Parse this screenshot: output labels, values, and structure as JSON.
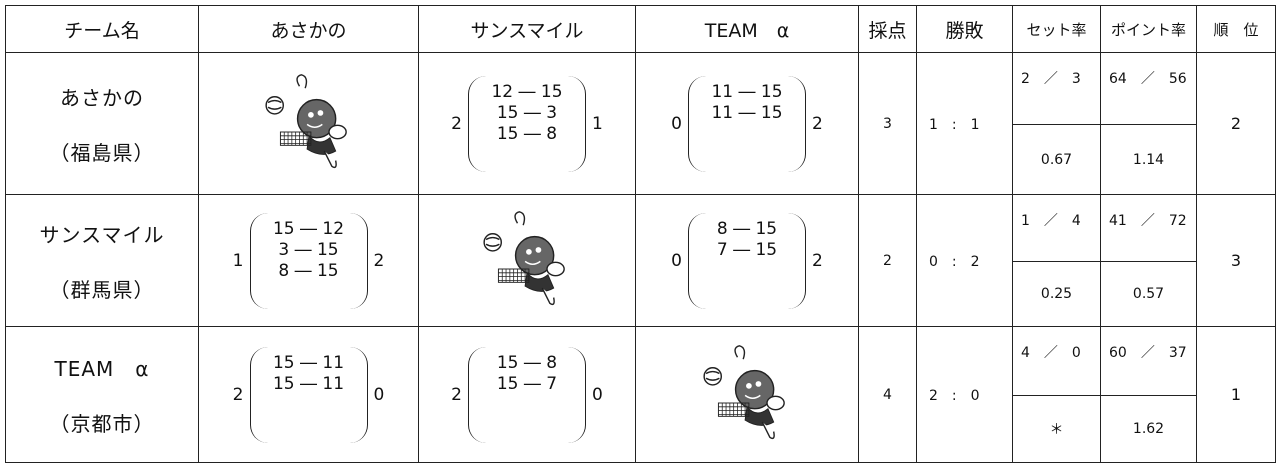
{
  "table": {
    "header": [
      "チーム名",
      "あさかの",
      "サンスマイル",
      "TEAM　α",
      "採点",
      "勝敗",
      "セット率",
      "ポイント率",
      "順　位"
    ],
    "rows": [
      {
        "team": "あさかの",
        "region": "（福島県）",
        "matches": [
          {
            "left": "2",
            "sets": [
              "12 ― 15",
              "15 ― 3",
              "15 ― 8"
            ],
            "right": "1"
          },
          {
            "left": "0",
            "sets": [
              "11 ― 15",
              "11 ― 15"
            ],
            "right": "2"
          }
        ],
        "score": "3",
        "record": "1　:　1",
        "set_ratio": "2　／　3",
        "set_rate": "0.67",
        "point_ratio": "64　／　56",
        "point_rate": "1.14",
        "rank": "2"
      },
      {
        "team": "サンスマイル",
        "region": "（群馬県）",
        "matches": [
          {
            "left": "1",
            "sets": [
              "15 ― 12",
              "3 ― 15",
              "8 ― 15"
            ],
            "right": "2"
          },
          {
            "left": "0",
            "sets": [
              "8 ― 15",
              "7 ― 15"
            ],
            "right": "2"
          }
        ],
        "score": "2",
        "record": "0　:　2",
        "set_ratio": "1　／　4",
        "set_rate": "0.25",
        "point_ratio": "41　／　72",
        "point_rate": "0.57",
        "rank": "3"
      },
      {
        "team": "TEAM　α",
        "region": "（京都市）",
        "matches": [
          {
            "left": "2",
            "sets": [
              "15 ― 11",
              "15 ― 11"
            ],
            "right": "0"
          },
          {
            "left": "2",
            "sets": [
              "15 ― 8",
              "15 ― 7"
            ],
            "right": "0"
          }
        ],
        "score": "4",
        "record": "2　:　0",
        "set_ratio": "4　／　0",
        "set_rate": "＊",
        "point_ratio": "60　／　37",
        "point_rate": "1.62",
        "rank": "1"
      }
    ]
  }
}
